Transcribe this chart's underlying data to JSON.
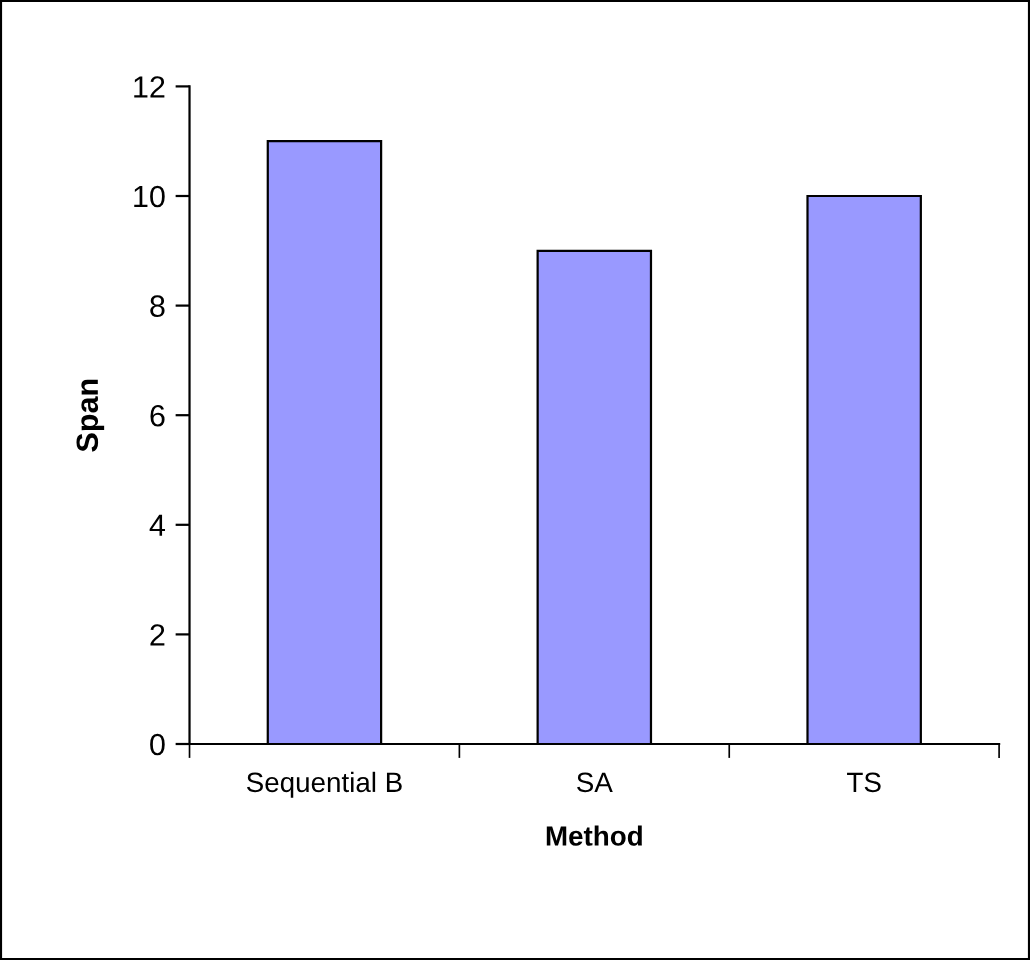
{
  "chart_data": {
    "type": "bar",
    "xlabel": "Method",
    "ylabel": "Span",
    "categories": [
      "Sequential B",
      "SA",
      "TS"
    ],
    "values": [
      11,
      9,
      10
    ],
    "color": "#9999ff",
    "ylim": [
      0,
      12
    ],
    "yticks": [
      0,
      2,
      4,
      6,
      8,
      10,
      12
    ],
    "grid": false,
    "legend": false
  }
}
